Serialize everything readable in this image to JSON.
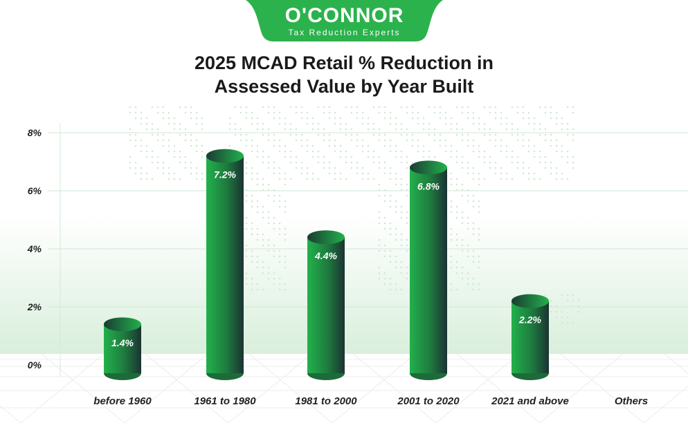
{
  "brand": {
    "name": "O'CONNOR",
    "tagline": "Tax Reduction Experts",
    "color": "#2bb24c"
  },
  "chart_data": {
    "type": "bar",
    "title_line1": "2025 MCAD Retail % Reduction in",
    "title_line2": "Assessed Value by Year Built",
    "categories": [
      "before 1960",
      "1961 to 1980",
      "1981 to 2000",
      "2001 to 2020",
      "2021 and above",
      "Others"
    ],
    "values": [
      1.4,
      7.2,
      4.4,
      6.8,
      2.2,
      null
    ],
    "data_labels": [
      "1.4%",
      "7.2%",
      "4.4%",
      "6.8%",
      "2.2%",
      ""
    ],
    "yticks": [
      0,
      2,
      4,
      6,
      8
    ],
    "ytick_labels": [
      "0%",
      "2%",
      "4%",
      "6%",
      "8%"
    ],
    "ylim": [
      0,
      8
    ],
    "grid": true,
    "bar_style": "3d-cylinder",
    "bar_colors": {
      "light": "#22b14c",
      "dark": "#1b3333"
    }
  }
}
